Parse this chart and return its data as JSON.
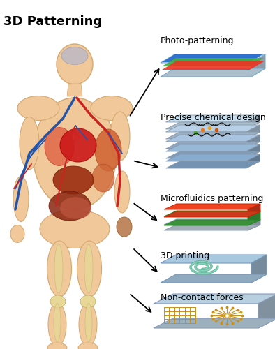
{
  "title": "3D Patterning",
  "labels": [
    "Photo-patterning",
    "Precise chemical design",
    "Microfluidics patterning",
    "3D printing",
    "Non-contact forces"
  ],
  "bg_color": "#ffffff",
  "title_fontsize": 13,
  "label_fontsize": 9,
  "skin_color": "#f0c89a",
  "skin_edge": "#d4a870",
  "bone_color": "#e8d898",
  "vein_blue": "#2255aa",
  "vein_red": "#cc2222",
  "organ_heart": "#cc1818",
  "organ_lung": "#e07050",
  "organ_liver": "#9b3515",
  "organ_intestine": "#c06040",
  "organ_muscle": "#d06030"
}
